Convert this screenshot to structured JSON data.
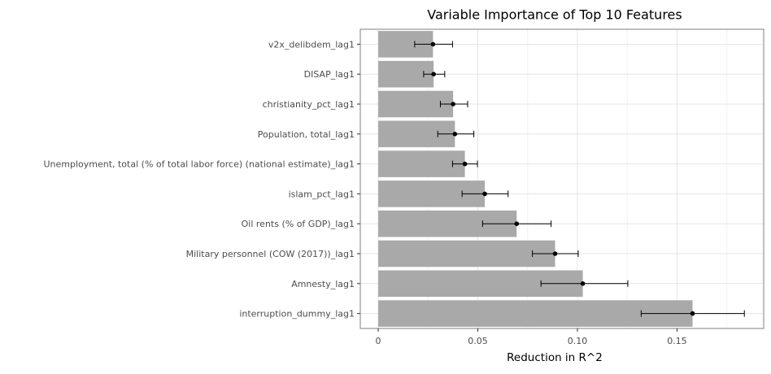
{
  "chart_data": {
    "type": "bar",
    "orientation": "horizontal",
    "title": "Variable Importance of Top 10 Features",
    "xlabel": "Reduction in R^2",
    "ylabel": "",
    "xlim": [
      -0.009,
      0.1935
    ],
    "xticks": [
      0,
      0.05,
      0.1,
      0.15
    ],
    "xtick_labels": [
      "0",
      "0.05",
      "0.10",
      "0.15"
    ],
    "grid": true,
    "legend": "none",
    "colors": {
      "bar": "#a9a9a9",
      "point": "#000000",
      "errorbar": "#000000",
      "panel_border": "#7f7f7f",
      "grid_major": "#e5e5e5",
      "grid_minor": "#f2f2f2"
    },
    "categories": [
      "v2x_delibdem_lag1",
      "DISAP_lag1",
      "christianity_pct_lag1",
      "Population, total_lag1",
      "Unemployment, total (% of total labor force) (national estimate)_lag1",
      "islam_pct_lag1",
      "Oil rents (% of GDP)_lag1",
      "Military personnel (COW (2017))_lag1",
      "Amnesty_lag1",
      "interruption_dummy_lag1"
    ],
    "values": [
      0.0275,
      0.0278,
      0.0376,
      0.0385,
      0.0435,
      0.0535,
      0.0695,
      0.0888,
      0.1027,
      0.1578
    ],
    "error_low": [
      0.0183,
      0.0228,
      0.0312,
      0.0299,
      0.0373,
      0.0421,
      0.0524,
      0.0774,
      0.0817,
      0.132
    ],
    "error_high": [
      0.0373,
      0.0334,
      0.0449,
      0.048,
      0.0498,
      0.0652,
      0.0868,
      0.1004,
      0.1253,
      0.1838
    ]
  }
}
